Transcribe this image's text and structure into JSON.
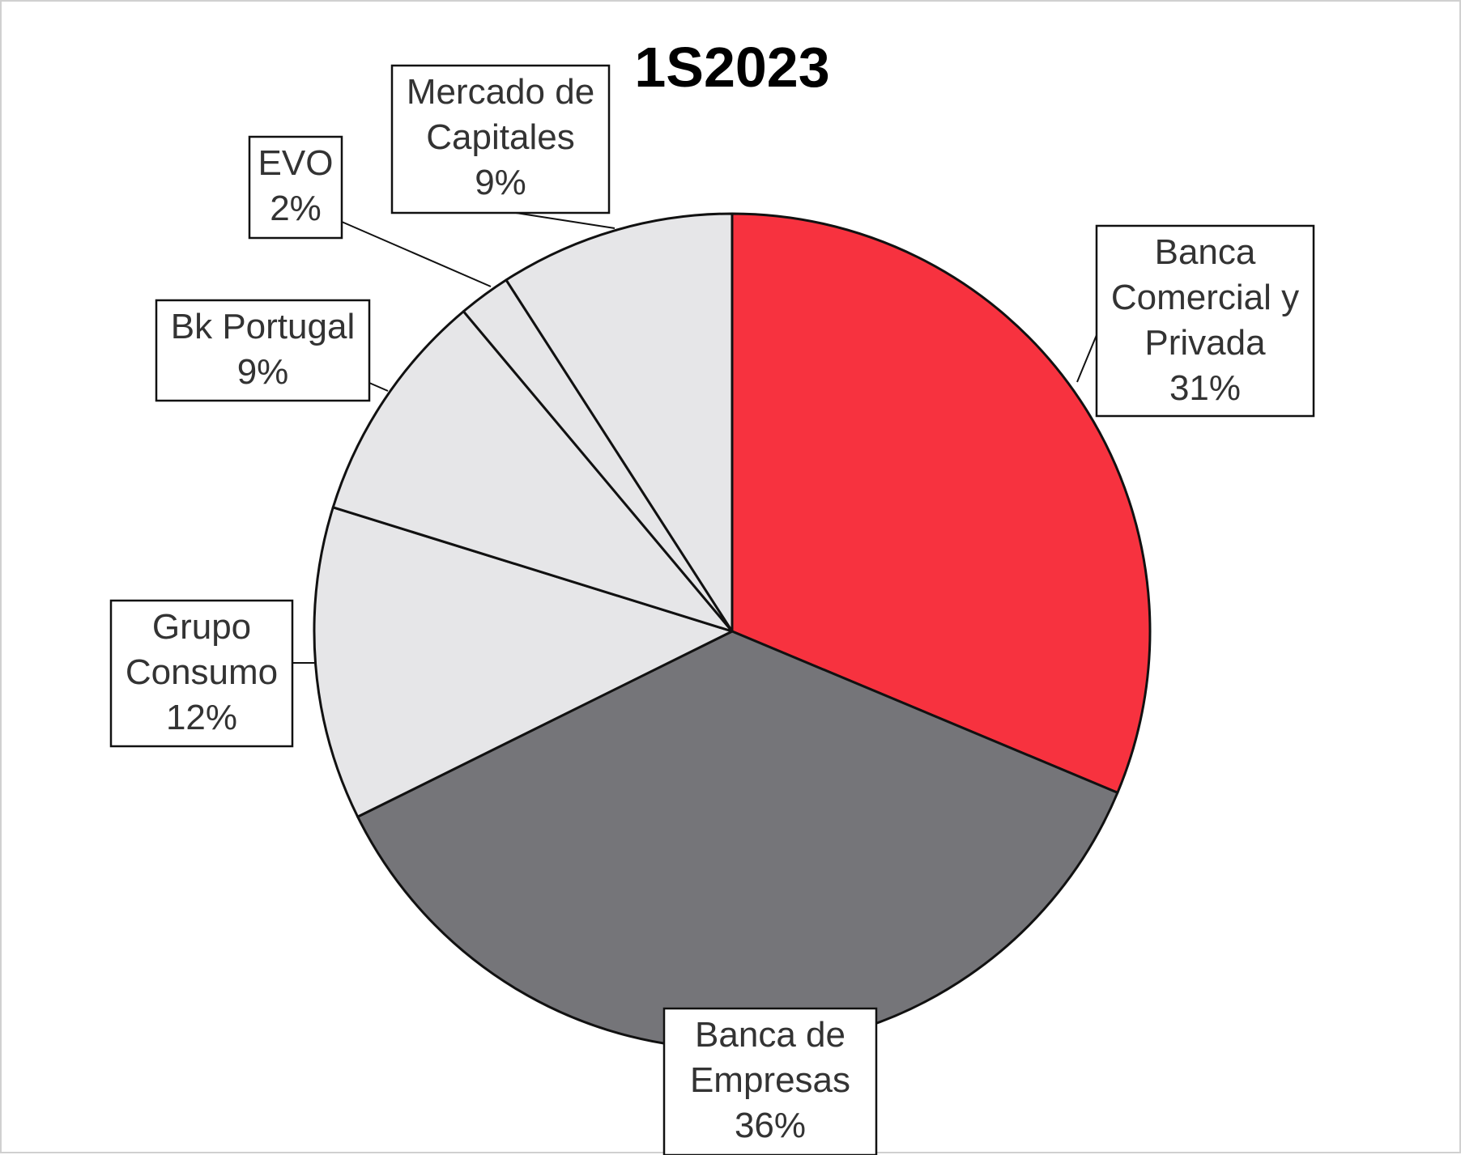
{
  "chart_data": {
    "type": "pie",
    "title": "1S2023",
    "slices": [
      {
        "label_lines": [
          "Banca",
          "Comercial y",
          "Privada"
        ],
        "value_label": "31%",
        "value": 31,
        "color": "#f7323f"
      },
      {
        "label_lines": [
          "Banca de",
          "Empresas"
        ],
        "value_label": "36%",
        "value": 36,
        "color": "#757579"
      },
      {
        "label_lines": [
          "Grupo",
          "Consumo"
        ],
        "value_label": "12%",
        "value": 12,
        "color": "#e6e6e8"
      },
      {
        "label_lines": [
          "Bk Portugal"
        ],
        "value_label": "9%",
        "value": 9,
        "color": "#e6e6e8"
      },
      {
        "label_lines": [
          "EVO"
        ],
        "value_label": "2%",
        "value": 2,
        "color": "#e6e6e8"
      },
      {
        "label_lines": [
          "Mercado de",
          "Capitales"
        ],
        "value_label": "9%",
        "value": 9,
        "color": "#e6e6e8"
      }
    ]
  }
}
